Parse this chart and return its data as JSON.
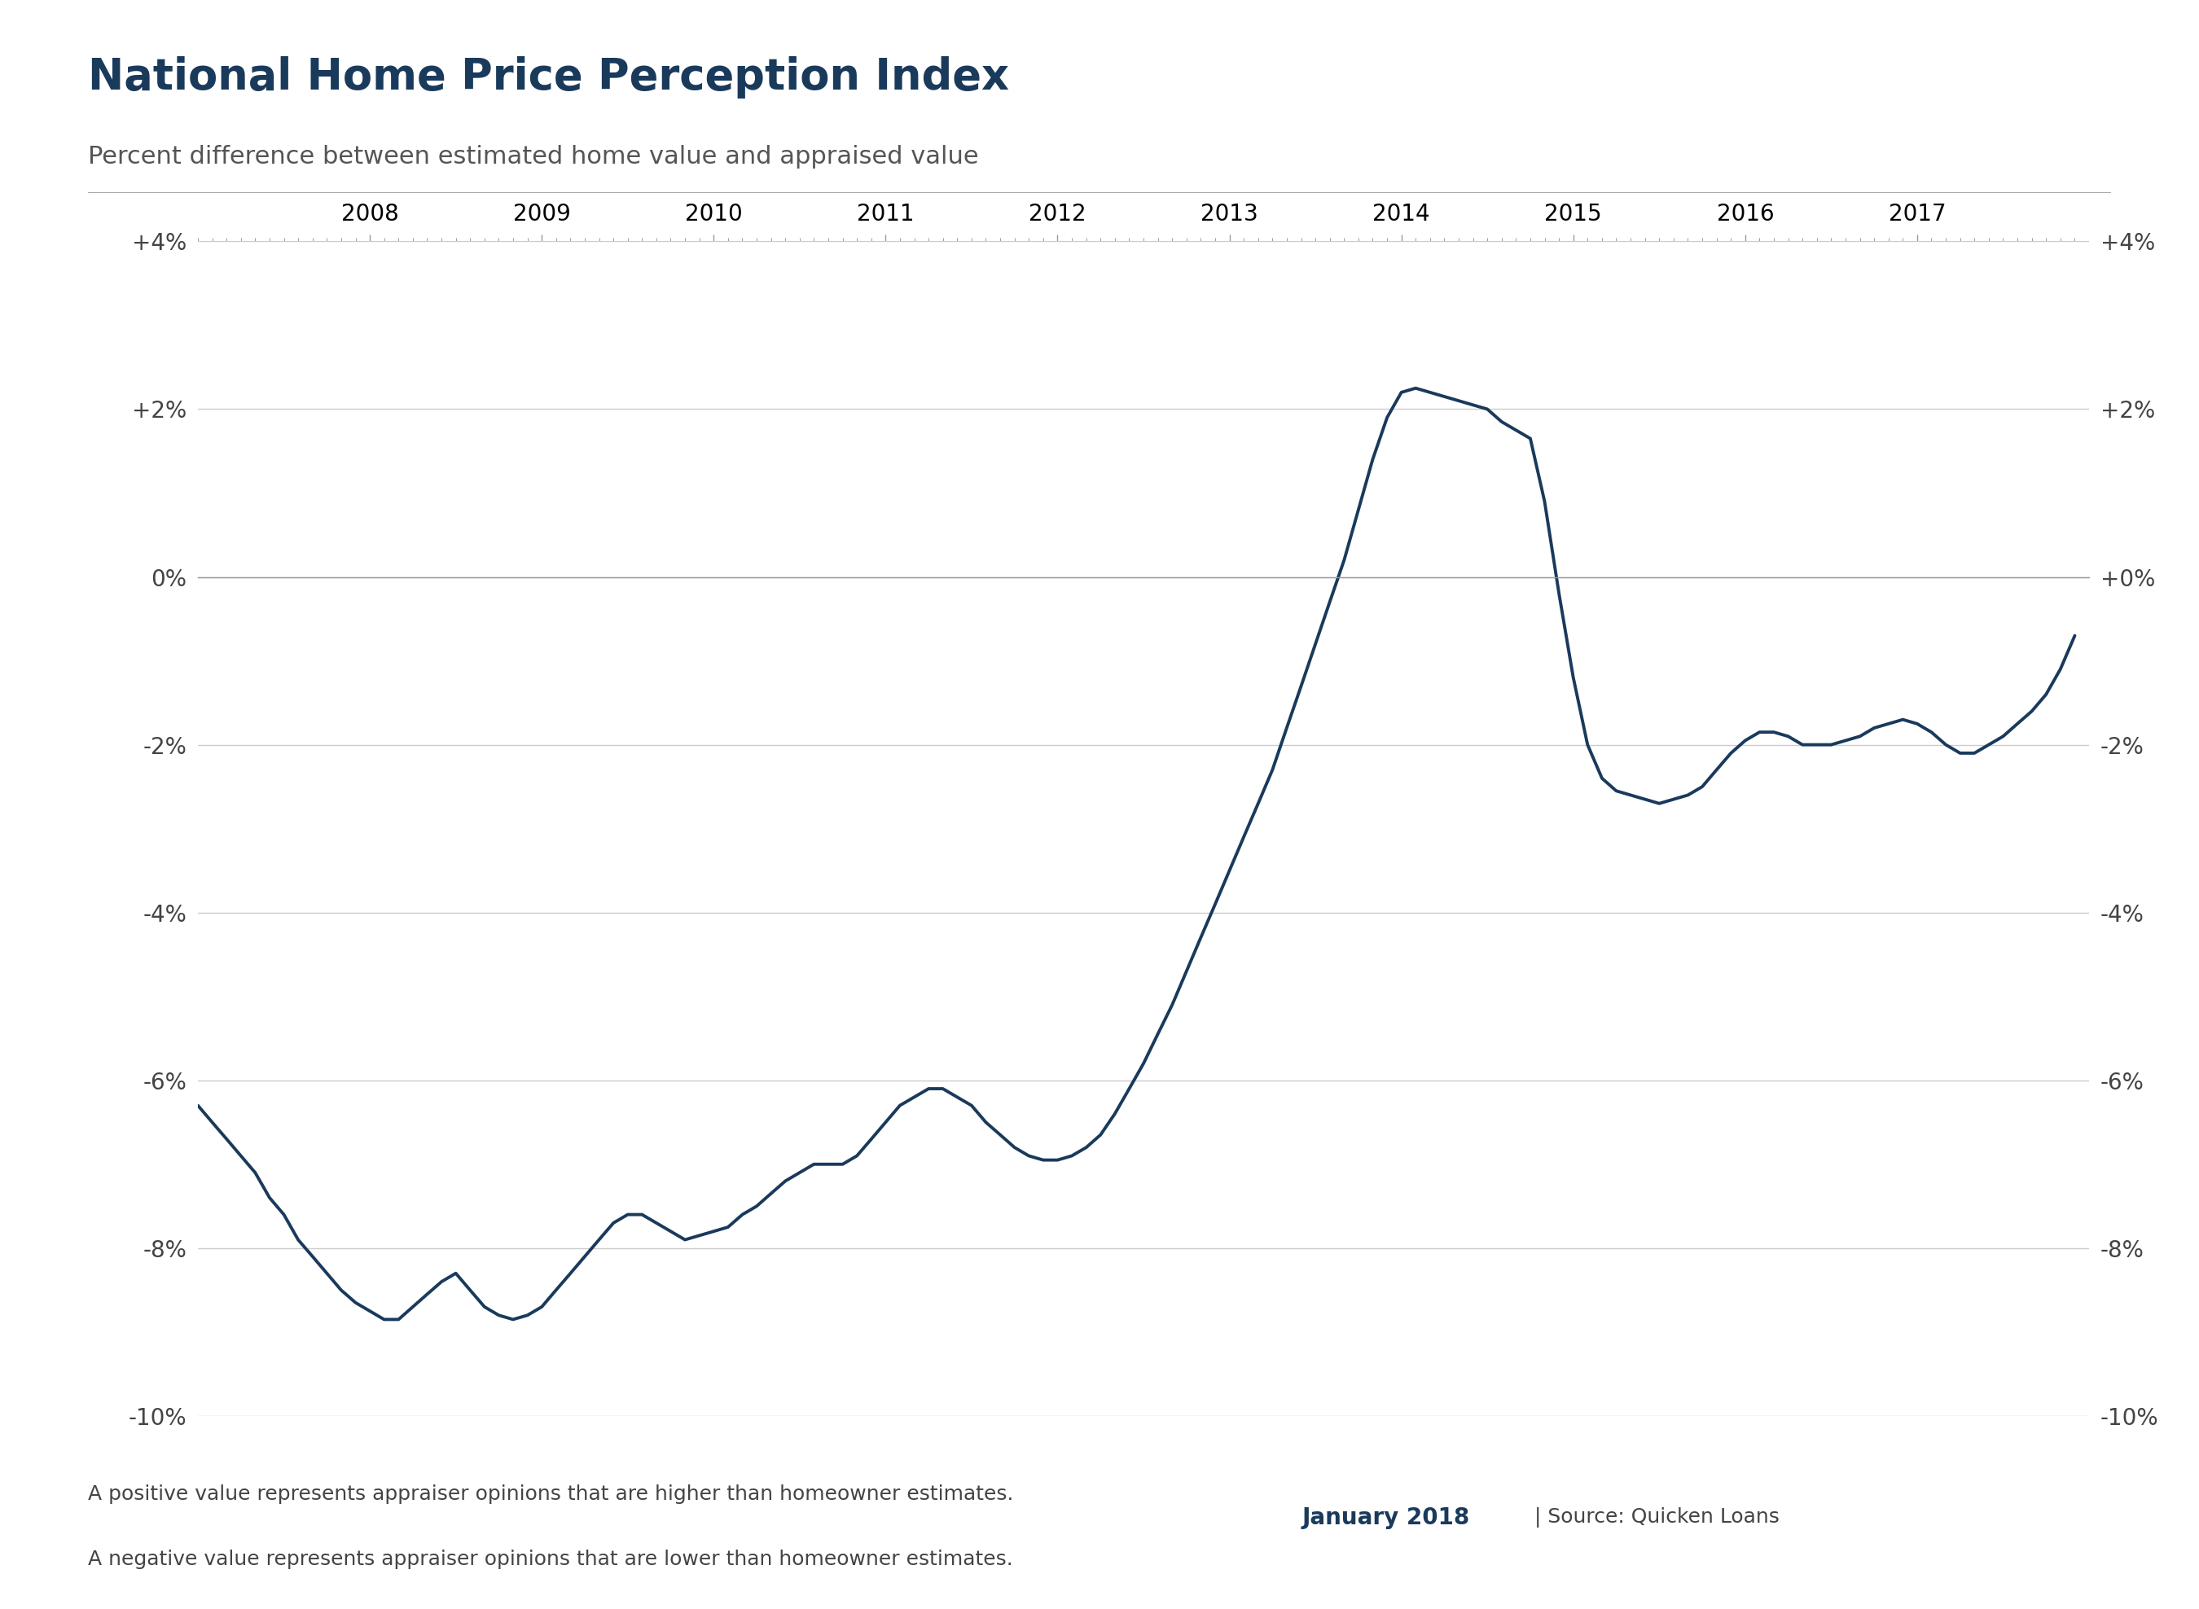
{
  "title": "National Home Price Perception Index",
  "subtitle": "Percent difference between estimated home value and appraised value",
  "line_color": "#1a3a5c",
  "line_width": 2.8,
  "background_color": "#ffffff",
  "grid_color": "#cccccc",
  "axis_label_color": "#555555",
  "title_color": "#1a3a5c",
  "subtitle_color": "#555555",
  "footer_note1": "A positive value represents appraiser opinions that are higher than homeowner estimates.",
  "footer_note2": "A negative value represents appraiser opinions that are lower than homeowner estimates.",
  "footer_date": "January 2018",
  "footer_source": "| Source: Quicken Loans",
  "ylim": [
    -10,
    4
  ],
  "yticks": [
    -10,
    -8,
    -6,
    -4,
    -2,
    0,
    2,
    4
  ],
  "ytick_labels": [
    "-10%",
    "-8%",
    "-6%",
    "-4%",
    "-2%",
    "0%",
    "+2%",
    "+4%"
  ],
  "ytick_labels_right": [
    "-10%",
    "-8%",
    "-6%",
    "-4%",
    "-2%",
    "+0%",
    "+2%",
    "+4%"
  ],
  "data": {
    "dates": [
      2007.0,
      2007.083,
      2007.167,
      2007.25,
      2007.333,
      2007.417,
      2007.5,
      2007.583,
      2007.667,
      2007.75,
      2007.833,
      2007.917,
      2008.0,
      2008.083,
      2008.167,
      2008.25,
      2008.333,
      2008.417,
      2008.5,
      2008.583,
      2008.667,
      2008.75,
      2008.833,
      2008.917,
      2009.0,
      2009.083,
      2009.167,
      2009.25,
      2009.333,
      2009.417,
      2009.5,
      2009.583,
      2009.667,
      2009.75,
      2009.833,
      2009.917,
      2010.0,
      2010.083,
      2010.167,
      2010.25,
      2010.333,
      2010.417,
      2010.5,
      2010.583,
      2010.667,
      2010.75,
      2010.833,
      2010.917,
      2011.0,
      2011.083,
      2011.167,
      2011.25,
      2011.333,
      2011.417,
      2011.5,
      2011.583,
      2011.667,
      2011.75,
      2011.833,
      2011.917,
      2012.0,
      2012.083,
      2012.167,
      2012.25,
      2012.333,
      2012.417,
      2012.5,
      2012.583,
      2012.667,
      2012.75,
      2012.833,
      2012.917,
      2013.0,
      2013.083,
      2013.167,
      2013.25,
      2013.333,
      2013.417,
      2013.5,
      2013.583,
      2013.667,
      2013.75,
      2013.833,
      2013.917,
      2014.0,
      2014.083,
      2014.167,
      2014.25,
      2014.333,
      2014.417,
      2014.5,
      2014.583,
      2014.667,
      2014.75,
      2014.833,
      2014.917,
      2015.0,
      2015.083,
      2015.167,
      2015.25,
      2015.333,
      2015.417,
      2015.5,
      2015.583,
      2015.667,
      2015.75,
      2015.833,
      2015.917,
      2016.0,
      2016.083,
      2016.167,
      2016.25,
      2016.333,
      2016.417,
      2016.5,
      2016.583,
      2016.667,
      2016.75,
      2016.833,
      2016.917,
      2017.0,
      2017.083,
      2017.167,
      2017.25,
      2017.333,
      2017.417,
      2017.5,
      2017.583,
      2017.667,
      2017.75,
      2017.833,
      2017.917
    ],
    "values": [
      -6.3,
      -6.5,
      -6.7,
      -6.9,
      -7.1,
      -7.4,
      -7.6,
      -7.9,
      -8.1,
      -8.3,
      -8.5,
      -8.65,
      -8.75,
      -8.85,
      -8.85,
      -8.7,
      -8.55,
      -8.4,
      -8.3,
      -8.5,
      -8.7,
      -8.8,
      -8.85,
      -8.8,
      -8.7,
      -8.5,
      -8.3,
      -8.1,
      -7.9,
      -7.7,
      -7.6,
      -7.6,
      -7.7,
      -7.8,
      -7.9,
      -7.85,
      -7.8,
      -7.75,
      -7.6,
      -7.5,
      -7.35,
      -7.2,
      -7.1,
      -7.0,
      -7.0,
      -7.0,
      -6.9,
      -6.7,
      -6.5,
      -6.3,
      -6.2,
      -6.1,
      -6.1,
      -6.2,
      -6.3,
      -6.5,
      -6.65,
      -6.8,
      -6.9,
      -6.95,
      -6.95,
      -6.9,
      -6.8,
      -6.65,
      -6.4,
      -6.1,
      -5.8,
      -5.45,
      -5.1,
      -4.7,
      -4.3,
      -3.9,
      -3.5,
      -3.1,
      -2.7,
      -2.3,
      -1.8,
      -1.3,
      -0.8,
      -0.3,
      0.2,
      0.8,
      1.4,
      1.9,
      2.2,
      2.25,
      2.2,
      2.15,
      2.1,
      2.05,
      2.0,
      1.85,
      1.75,
      1.65,
      0.9,
      -0.2,
      -1.2,
      -2.0,
      -2.4,
      -2.55,
      -2.6,
      -2.65,
      -2.7,
      -2.65,
      -2.6,
      -2.5,
      -2.3,
      -2.1,
      -1.95,
      -1.85,
      -1.85,
      -1.9,
      -2.0,
      -2.0,
      -2.0,
      -1.95,
      -1.9,
      -1.8,
      -1.75,
      -1.7,
      -1.75,
      -1.85,
      -2.0,
      -2.1,
      -2.1,
      -2.0,
      -1.9,
      -1.75,
      -1.6,
      -1.4,
      -1.1,
      -0.7
    ]
  },
  "x_tick_years": [
    2008,
    2009,
    2010,
    2011,
    2012,
    2013,
    2014,
    2015,
    2016,
    2017
  ],
  "xlim_start": 2007.0,
  "xlim_end": 2018.0
}
